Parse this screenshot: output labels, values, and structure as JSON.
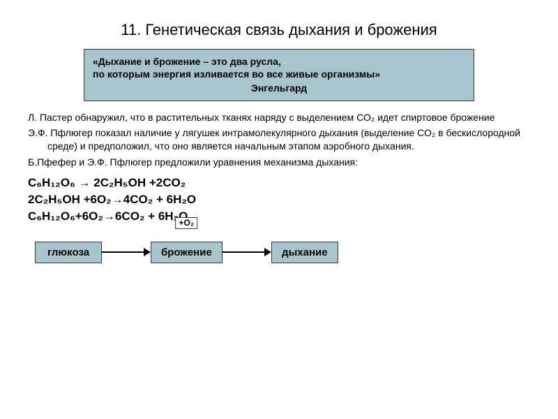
{
  "title": "11. Генетическая связь дыхания и брожения",
  "quote": {
    "line1": "«Дыхание и брожение – это два русла,",
    "line2": "по которым энергия изливается во все живые организмы»",
    "author": "Энгельгард"
  },
  "paragraphs": {
    "p1": "Л. Пастер обнаружил, что в растительных тканях наряду с выделением СО₂ идет спиртовое брожение",
    "p2": "Э.Ф. Пфлюгер показал наличие у лягушек интрамолекулярного дыхания (выделение СО₂ в бескислородной среде) и предположил, что оно является начальным этапом аэробного дыхания.",
    "p3": "Б.Пфефер и Э.Ф. Пфлюгер предложили уравнения механизма дыхания:"
  },
  "equations": {
    "eq1": "C₆H₁₂O₆ → 2C₂H₅OH +2CO₂",
    "eq2": "2C₂H₅OH +6O₂→4CO₂ + 6H₂O",
    "eq3": "C₆H₁₂O₆+6O₂→6CO₂ + 6H₂O"
  },
  "diagram": {
    "node1": "глюкоза",
    "node2": "брожение",
    "node3": "дыхание",
    "o2_label": "+О₂"
  },
  "colors": {
    "box_bg": "#a6c5cd",
    "border": "#333333",
    "text": "#000000",
    "bg": "#ffffff"
  }
}
